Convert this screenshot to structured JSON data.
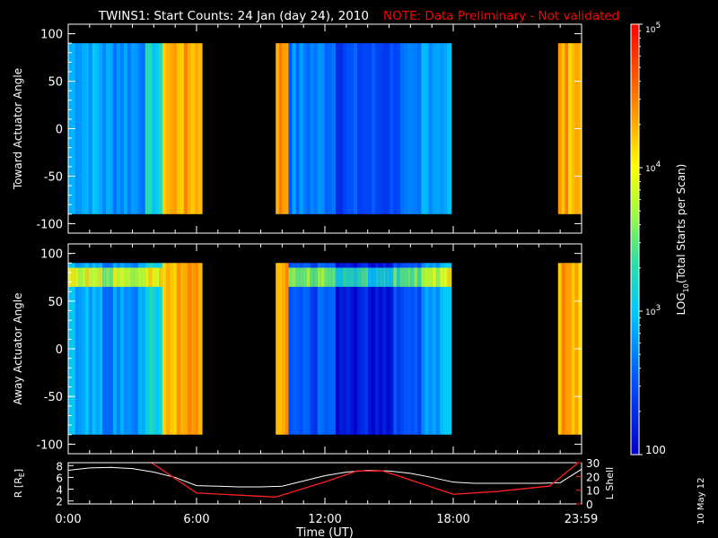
{
  "title": "TWINS1: Start Counts: 24 Jan (day  24), 2010",
  "note": "NOTE: Data Preliminary - Not validated",
  "date_stamp": "10 May 12",
  "colors": {
    "background": "#000000",
    "foreground": "#ffffff",
    "note": "#ff0000",
    "lshell": "#ff2020"
  },
  "chart_data": [
    {
      "type": "heatmap",
      "ylabel": "Toward Actuator Angle",
      "ylim": [
        -110,
        110
      ],
      "yticks": [
        100,
        50,
        0,
        -50,
        -100
      ],
      "angle_range": [
        -90,
        90
      ],
      "xlim": [
        0,
        24
      ],
      "data_intervals_ut": [
        [
          0,
          6.25
        ],
        [
          9.7,
          17.9
        ],
        [
          22.9,
          24
        ]
      ],
      "level_profile": [
        {
          "t0": 0.0,
          "t1": 1.6,
          "level": 2.9
        },
        {
          "t0": 1.6,
          "t1": 3.6,
          "level": 2.8
        },
        {
          "t0": 3.6,
          "t1": 4.4,
          "level": 3.1
        },
        {
          "t0": 4.4,
          "t1": 6.25,
          "level": 4.3
        },
        {
          "t0": 9.7,
          "t1": 10.3,
          "level": 4.4
        },
        {
          "t0": 10.3,
          "t1": 12.5,
          "level": 2.7
        },
        {
          "t0": 12.5,
          "t1": 15.2,
          "level": 2.45
        },
        {
          "t0": 15.2,
          "t1": 16.5,
          "level": 2.55
        },
        {
          "t0": 16.5,
          "t1": 17.9,
          "level": 2.9
        },
        {
          "t0": 22.9,
          "t1": 24.0,
          "level": 4.3
        }
      ]
    },
    {
      "type": "heatmap",
      "ylabel": "Away Actuator Angle",
      "ylim": [
        -110,
        110
      ],
      "yticks": [
        100,
        50,
        0,
        -50,
        -100
      ],
      "angle_range": [
        -90,
        90
      ],
      "xlim": [
        0,
        24
      ],
      "data_intervals_ut": [
        [
          0,
          6.25
        ],
        [
          9.7,
          17.9
        ],
        [
          22.9,
          24
        ]
      ],
      "level_profile": [
        {
          "t0": 0.0,
          "t1": 1.6,
          "level": 2.9
        },
        {
          "t0": 1.6,
          "t1": 3.6,
          "level": 2.75
        },
        {
          "t0": 3.6,
          "t1": 4.4,
          "level": 3.1
        },
        {
          "t0": 4.4,
          "t1": 6.25,
          "level": 4.3
        },
        {
          "t0": 9.7,
          "t1": 10.3,
          "level": 4.3
        },
        {
          "t0": 10.3,
          "t1": 12.5,
          "level": 2.5
        },
        {
          "t0": 12.5,
          "t1": 15.2,
          "level": 2.2
        },
        {
          "t0": 15.2,
          "t1": 16.5,
          "level": 2.5
        },
        {
          "t0": 16.5,
          "t1": 17.9,
          "level": 2.9
        },
        {
          "t0": 22.9,
          "t1": 24.0,
          "level": 4.3
        }
      ]
    },
    {
      "type": "line",
      "ylabel": "R [RE]",
      "ylabel_main": "R [R",
      "ylabel_sub": "E",
      "ylabel_end": "]",
      "ylim": [
        1.5,
        8.5
      ],
      "yticks": [
        "8",
        "6",
        "4",
        "2"
      ],
      "xlim": [
        0,
        24
      ],
      "xticks": [
        {
          "t": 0,
          "label": "0:00"
        },
        {
          "t": 6,
          "label": "6:00"
        },
        {
          "t": 12,
          "label": "12:00"
        },
        {
          "t": 18,
          "label": "18:00"
        },
        {
          "t": 23.98,
          "label": "23:59"
        }
      ],
      "xlabel": "Time (UT)",
      "series": [
        {
          "color": "#ffffff",
          "x": [
            0,
            1,
            2,
            3,
            4,
            5,
            6,
            7,
            8,
            9,
            10,
            11,
            12,
            13,
            14,
            15,
            16,
            17,
            18,
            19,
            20,
            21,
            22,
            23,
            24
          ],
          "y": [
            7.2,
            7.6,
            7.7,
            7.5,
            6.9,
            6.0,
            4.6,
            4.5,
            4.4,
            4.4,
            4.5,
            5.4,
            6.3,
            6.9,
            7.2,
            7.1,
            6.7,
            6.0,
            5.2,
            5.0,
            5.0,
            5.0,
            5.0,
            5.1,
            7.4
          ]
        }
      ],
      "y2label": "L Shell",
      "y2lim": [
        0,
        30
      ],
      "y2ticks": [
        "30",
        "20",
        "10",
        "0"
      ],
      "series2": [
        {
          "color": "#ff2020",
          "x": [
            3.7,
            6,
            9.7,
            12,
            13.5,
            14.7,
            15.3,
            18,
            20,
            22.5,
            24
          ],
          "y": [
            32,
            8,
            5,
            16,
            24,
            24,
            21,
            7,
            9,
            13,
            32
          ]
        }
      ]
    },
    {
      "type": "heatmap",
      "colorbar_label": "LOG10(Total Starts per Scan)",
      "label_main": "LOG",
      "label_sub": "10",
      "label_end": "(Total Starts per Scan)",
      "range": [
        2,
        5
      ],
      "tick_labels": [
        {
          "value": 5,
          "base": "10",
          "exp": "5"
        },
        {
          "value": 4,
          "base": "10",
          "exp": "4"
        },
        {
          "value": 3,
          "base": "10",
          "exp": "3"
        },
        {
          "value": 2,
          "base": "100",
          "exp": ""
        }
      ]
    }
  ]
}
